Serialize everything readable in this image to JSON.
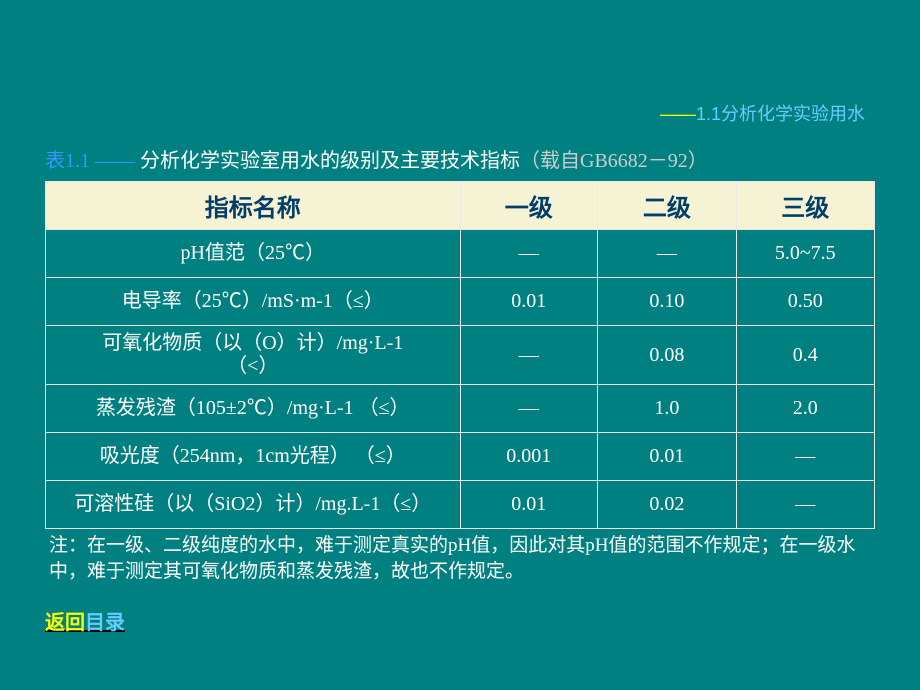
{
  "subtitle": {
    "prefix": "——",
    "text": "1.1分析化学实验用水"
  },
  "caption": {
    "label": "表1.1 —— ",
    "main": "分析化学实验室用水的级别及主要技术指标",
    "source": "（载自GB6682－92）"
  },
  "table": {
    "headers": [
      "指标名称",
      "一级",
      "二级",
      "三级"
    ],
    "rows": [
      {
        "name": "pH值范（25℃）",
        "c1": "—",
        "c2": "—",
        "c3": "5.0~7.5"
      },
      {
        "name": "电导率（25℃）/mS·m-1（≤）",
        "c1": "0.01",
        "c2": "0.10",
        "c3": "0.50"
      },
      {
        "name": "可氧化物质（以（O）计）/mg·L-1（<）",
        "c1": "—",
        "c2": "0.08",
        "c3": "0.4"
      },
      {
        "name": "蒸发残渣（105±2℃）/mg·L-1    （≤）",
        "c1": "—",
        "c2": "1.0",
        "c3": "2.0"
      },
      {
        "name": "吸光度（254nm，1cm光程）   （≤）",
        "c1": "0.001",
        "c2": "0.01",
        "c3": "—"
      },
      {
        "name": "可溶性硅（以（SiO2）计）/mg.L-1（≤）",
        "c1": "0.01",
        "c2": "0.02",
        "c3": "—"
      }
    ]
  },
  "note": "注：在一级、二级纯度的水中，难于测定真实的pH值，因此对其pH值的范围不作规定；在一级水中，难于测定其可氧化物质和蒸发残渣，故也不作规定。",
  "backlink": {
    "a": "返回",
    "b": "目录"
  },
  "colors": {
    "background": "#008080",
    "header_bg": "#f6f3d4",
    "header_fg": "#023e6a",
    "border": "#e8e8e8",
    "yellow": "#ffff00",
    "light_blue": "#66ccff",
    "bright_blue": "#3399ff",
    "white": "#ffffff",
    "gray": "#cccccc"
  }
}
